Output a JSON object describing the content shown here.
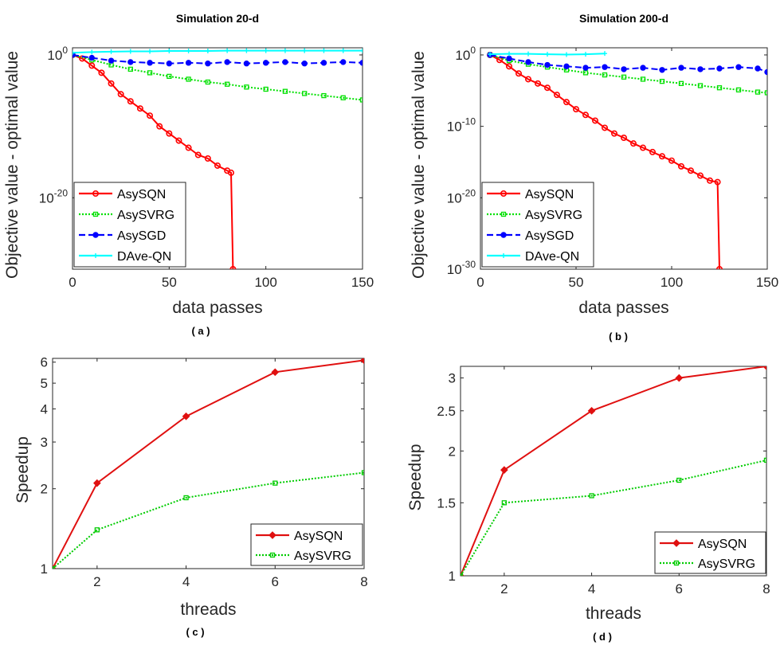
{
  "chart_data": [
    {
      "id": "a",
      "type": "line",
      "title": "Simulation 20-d",
      "caption": "( a )",
      "xlabel": "data passes",
      "ylabel": "Objective value - optimal value",
      "xlim": [
        0,
        150
      ],
      "ylim_log10": [
        -30,
        1
      ],
      "yscale": "log",
      "xticks": [
        0,
        50,
        100,
        150
      ],
      "yticks": [
        {
          "label": "10",
          "exp": "0",
          "value": 0
        },
        {
          "label": "10",
          "exp": "-20",
          "value": -20
        }
      ],
      "grid": false,
      "legend_position": "bottom-left",
      "series": [
        {
          "name": "AsySQN",
          "color": "#ff0000",
          "style": "solid",
          "marker": "circle",
          "x": [
            0,
            5,
            10,
            15,
            20,
            25,
            30,
            35,
            40,
            45,
            50,
            55,
            60,
            65,
            70,
            75,
            80,
            82,
            83
          ],
          "y_log10": [
            0,
            -0.5,
            -1.5,
            -2.5,
            -4,
            -5.5,
            -6.5,
            -7.5,
            -8.5,
            -10,
            -11,
            -12,
            -13,
            -14,
            -14.5,
            -15.5,
            -16.2,
            -16.5,
            -30
          ]
        },
        {
          "name": "AsySVRG",
          "color": "#00e000",
          "style": "dotted",
          "marker": "square",
          "x": [
            0,
            10,
            20,
            30,
            40,
            50,
            60,
            70,
            80,
            90,
            100,
            110,
            120,
            130,
            140,
            150
          ],
          "y_log10": [
            0,
            -0.7,
            -1.4,
            -2.0,
            -2.5,
            -3.0,
            -3.4,
            -3.8,
            -4.1,
            -4.5,
            -4.8,
            -5.1,
            -5.4,
            -5.7,
            -6.0,
            -6.3
          ]
        },
        {
          "name": "AsySGD",
          "color": "#0000ff",
          "style": "dashed",
          "marker": "dot",
          "x": [
            0,
            10,
            20,
            30,
            40,
            50,
            60,
            70,
            80,
            90,
            100,
            110,
            120,
            130,
            140,
            150
          ],
          "y_log10": [
            0,
            -0.4,
            -0.8,
            -1.0,
            -1.1,
            -1.2,
            -1.1,
            -1.2,
            -1.0,
            -1.2,
            -1.1,
            -1.0,
            -1.2,
            -1.1,
            -1.0,
            -1.1
          ]
        },
        {
          "name": "DAve-QN",
          "color": "#00ffff",
          "style": "solid",
          "marker": "plus",
          "x": [
            0,
            10,
            20,
            30,
            40,
            50,
            60,
            70,
            80,
            90,
            100,
            110,
            120,
            130,
            140,
            150
          ],
          "y_log10": [
            0.3,
            0.4,
            0.45,
            0.5,
            0.5,
            0.55,
            0.55,
            0.55,
            0.6,
            0.6,
            0.6,
            0.6,
            0.6,
            0.6,
            0.6,
            0.6
          ]
        }
      ]
    },
    {
      "id": "b",
      "type": "line",
      "title": "Simulation 200-d",
      "caption": "( b )",
      "xlabel": "data passes",
      "ylabel": "Objective value - optimal value",
      "xlim": [
        0,
        150
      ],
      "ylim_log10": [
        -30,
        1
      ],
      "yscale": "log",
      "xticks": [
        0,
        50,
        100,
        150
      ],
      "yticks": [
        {
          "label": "10",
          "exp": "0",
          "value": 0
        },
        {
          "label": "10",
          "exp": "-10",
          "value": -10
        },
        {
          "label": "10",
          "exp": "-20",
          "value": -20
        },
        {
          "label": "10",
          "exp": "-30",
          "value": -30
        }
      ],
      "grid": false,
      "legend_position": "bottom-left",
      "series": [
        {
          "name": "AsySQN",
          "color": "#ff0000",
          "style": "solid",
          "marker": "circle",
          "x": [
            5,
            10,
            15,
            20,
            25,
            30,
            35,
            40,
            45,
            50,
            55,
            60,
            65,
            70,
            75,
            80,
            85,
            90,
            95,
            100,
            105,
            110,
            115,
            120,
            124,
            125
          ],
          "y_log10": [
            0,
            -0.7,
            -1.6,
            -2.6,
            -3.4,
            -4.0,
            -4.6,
            -5.6,
            -6.6,
            -7.6,
            -8.4,
            -9.2,
            -10.2,
            -11.0,
            -11.6,
            -12.4,
            -13.0,
            -13.6,
            -14.2,
            -14.8,
            -15.6,
            -16.2,
            -16.9,
            -17.6,
            -17.8,
            -30
          ]
        },
        {
          "name": "AsySVRG",
          "color": "#00e000",
          "style": "dotted",
          "marker": "square",
          "x": [
            5,
            15,
            25,
            35,
            45,
            55,
            65,
            75,
            85,
            95,
            105,
            115,
            125,
            135,
            145,
            150
          ],
          "y_log10": [
            0,
            -0.8,
            -1.3,
            -1.7,
            -2.1,
            -2.5,
            -2.8,
            -3.1,
            -3.4,
            -3.7,
            -4.0,
            -4.3,
            -4.6,
            -4.9,
            -5.2,
            -5.3
          ]
        },
        {
          "name": "AsySGD",
          "color": "#0000ff",
          "style": "dashed",
          "marker": "dot",
          "x": [
            5,
            15,
            25,
            35,
            45,
            55,
            65,
            75,
            85,
            95,
            105,
            115,
            125,
            135,
            145,
            150
          ],
          "y_log10": [
            0,
            -0.5,
            -1.0,
            -1.4,
            -1.6,
            -1.8,
            -1.7,
            -2.0,
            -1.8,
            -2.1,
            -1.8,
            -2.0,
            -1.9,
            -1.7,
            -1.9,
            -2.4
          ]
        },
        {
          "name": "DAve-QN",
          "color": "#00ffff",
          "style": "solid",
          "marker": "plus",
          "x": [
            5,
            15,
            25,
            35,
            45,
            55,
            65
          ],
          "y_log10": [
            0.1,
            0.15,
            0.15,
            0.1,
            0.05,
            0.1,
            0.2
          ]
        }
      ]
    },
    {
      "id": "c",
      "type": "line",
      "caption": "( c )",
      "xlabel": "threads",
      "ylabel": "Speedup",
      "xlim": [
        1,
        8
      ],
      "ylim": [
        1,
        6.2
      ],
      "yscale": "log",
      "xticks": [
        2,
        4,
        6,
        8
      ],
      "yticks": [
        1,
        2,
        3,
        4,
        5,
        6
      ],
      "grid": false,
      "legend_position": "bottom-right",
      "series": [
        {
          "name": "AsySQN",
          "color": "#e01010",
          "style": "solid",
          "marker": "diamond",
          "x": [
            1,
            2,
            4,
            6,
            8
          ],
          "y": [
            1,
            2.1,
            3.75,
            5.5,
            6.1
          ]
        },
        {
          "name": "AsySVRG",
          "color": "#00cc00",
          "style": "dotted",
          "marker": "square",
          "x": [
            1,
            2,
            4,
            6,
            8
          ],
          "y": [
            1,
            1.4,
            1.85,
            2.1,
            2.3
          ]
        }
      ]
    },
    {
      "id": "d",
      "type": "line",
      "caption": "( d )",
      "xlabel": "threads",
      "ylabel": "Speedup",
      "xlim": [
        1,
        8
      ],
      "ylim": [
        1,
        3.2
      ],
      "yscale": "log",
      "xticks": [
        2,
        4,
        6,
        8
      ],
      "yticks": [
        1,
        1.5,
        2,
        2.5,
        3
      ],
      "grid": false,
      "legend_position": "bottom-right",
      "series": [
        {
          "name": "AsySQN",
          "color": "#e01010",
          "style": "solid",
          "marker": "diamond",
          "x": [
            1,
            2,
            4,
            6,
            8
          ],
          "y": [
            1,
            1.8,
            2.5,
            3.0,
            3.2
          ]
        },
        {
          "name": "AsySVRG",
          "color": "#00cc00",
          "style": "dotted",
          "marker": "square",
          "x": [
            1,
            2,
            4,
            6,
            8
          ],
          "y": [
            1,
            1.5,
            1.56,
            1.7,
            1.9
          ]
        }
      ]
    }
  ]
}
